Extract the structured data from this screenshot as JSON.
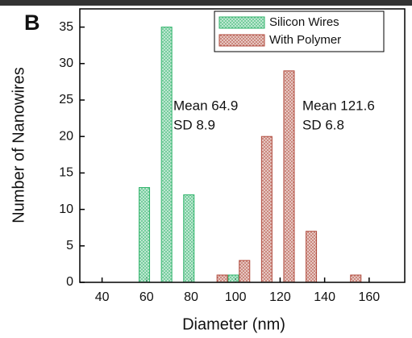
{
  "chart_data": {
    "type": "bar",
    "panel_label": "B",
    "xlabel": "Diameter (nm)",
    "ylabel": "Number of Nanowires",
    "xlim": [
      30,
      176
    ],
    "xticks": [
      40,
      60,
      80,
      100,
      120,
      140,
      160
    ],
    "ylim": [
      0,
      37.5
    ],
    "yticks": [
      0,
      5,
      10,
      15,
      20,
      25,
      30,
      35
    ],
    "legend": "upper right",
    "series": [
      {
        "name": "Silicon Wires",
        "color": "#2fb36a",
        "x": [
          59,
          69,
          79,
          99
        ],
        "values": [
          13,
          35,
          12,
          1
        ]
      },
      {
        "name": "With Polymer",
        "color": "#b04a3c",
        "x": [
          94,
          104,
          114,
          124,
          134,
          154
        ],
        "values": [
          1,
          3,
          20,
          29,
          7,
          1
        ]
      }
    ],
    "annotations": [
      {
        "lines": [
          "Mean 64.9",
          "SD 8.9"
        ]
      },
      {
        "lines": [
          "Mean 121.6",
          "SD 6.8"
        ]
      }
    ]
  }
}
